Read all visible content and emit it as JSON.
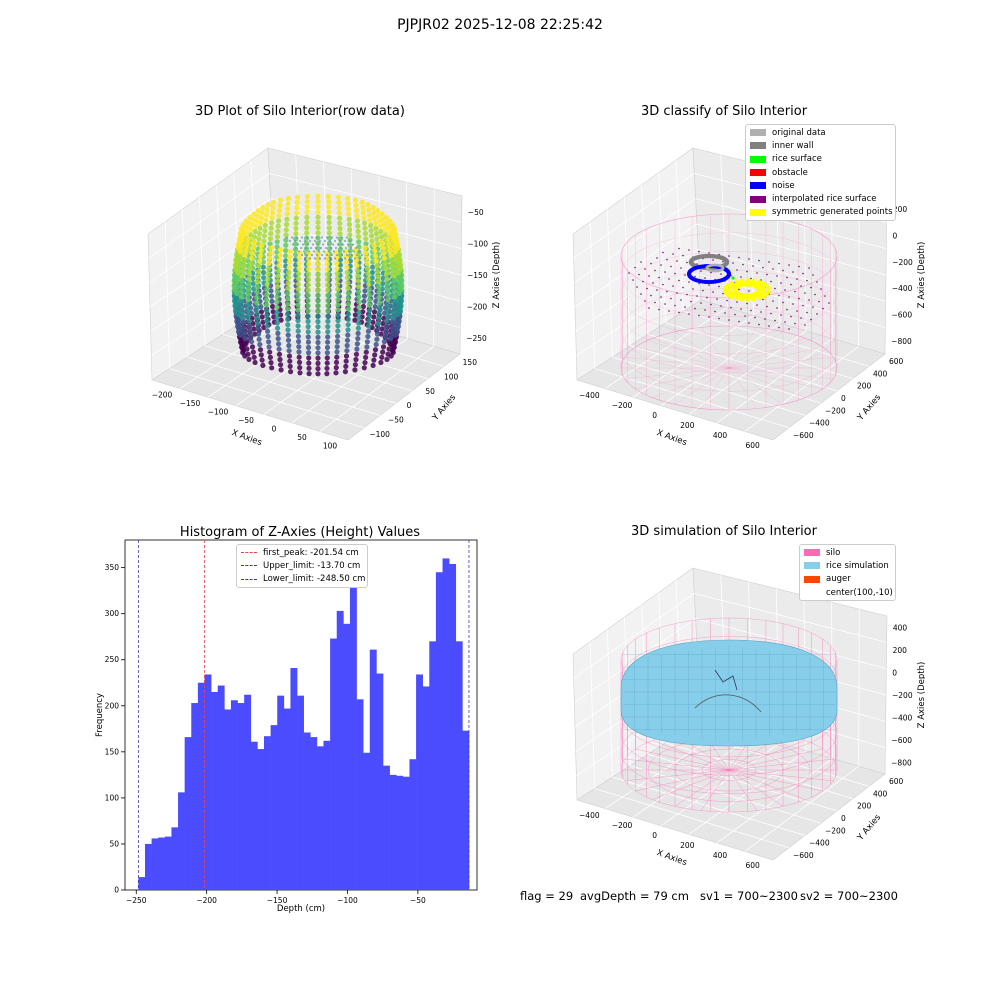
{
  "suptitle": "PJPJR02 2025-12-08 22:25:42",
  "footer": {
    "flag": "flag = 29",
    "avg_depth": "avgDepth = 79 cm",
    "sv1": "sv1 = 700~2300",
    "sv2": "sv2 = 700~2300"
  },
  "colors": {
    "hist_bar": "#4c4cff",
    "peak_line": "#e8434b",
    "limit_line": "#3a3aa8",
    "silo": "#ff69b4",
    "rice_simulation": "#87ceeb",
    "auger": "#ff4500",
    "original_data": "#b0b0b0",
    "inner_wall": "#808080",
    "rice_surface": "#00ff00",
    "obstacle": "#ff0000",
    "noise": "#0000ff",
    "interpolated": "#800080",
    "symmetric": "#ffff00"
  },
  "panel_raw": {
    "title": "3D Plot of Silo Interior(row data)",
    "x_label": "X Axies",
    "y_label": "Y Axies",
    "z_label": "Z Axies (Depth)",
    "x_ticks": [
      "−200",
      "−150",
      "−100",
      "−50",
      "0",
      "50",
      "100"
    ],
    "y_ticks": [
      "−100",
      "−50",
      "0",
      "50",
      "100",
      "150"
    ],
    "z_ticks": [
      "−50",
      "−100",
      "−150",
      "−200",
      "−250"
    ]
  },
  "panel_classify": {
    "title": "3D classify of Silo Interior",
    "x_label": "X Axies",
    "y_label": "Y Axies",
    "z_label": "Z Axies (Depth)",
    "x_ticks": [
      "−400",
      "−200",
      "0",
      "200",
      "400",
      "600"
    ],
    "y_ticks": [
      "−600",
      "−400",
      "−200",
      "0",
      "200",
      "400",
      "600"
    ],
    "z_ticks": [
      "200",
      "0",
      "−200",
      "−400",
      "−600",
      "−800"
    ],
    "legend": [
      {
        "label": "original data",
        "color": "#b0b0b0"
      },
      {
        "label": "inner wall",
        "color": "#808080"
      },
      {
        "label": "rice surface",
        "color": "#00ff00"
      },
      {
        "label": "obstacle",
        "color": "#ff0000"
      },
      {
        "label": "noise",
        "color": "#0000ff"
      },
      {
        "label": "interpolated rice surface",
        "color": "#800080"
      },
      {
        "label": "symmetric generated points",
        "color": "#ffff00"
      }
    ]
  },
  "panel_sim": {
    "title": "3D simulation of Silo Interior",
    "x_label": "X Axies",
    "y_label": "Y Axies",
    "z_label": "Z Axies (Depth)",
    "x_ticks": [
      "−400",
      "−200",
      "0",
      "200",
      "400",
      "600"
    ],
    "y_ticks": [
      "−600",
      "−400",
      "−200",
      "0",
      "200",
      "400",
      "600"
    ],
    "z_ticks": [
      "400",
      "200",
      "0",
      "−200",
      "−400",
      "−600",
      "−800"
    ],
    "legend": [
      {
        "label": "silo",
        "color": "#ff69b4"
      },
      {
        "label": "rice simulation",
        "color": "#87ceeb"
      },
      {
        "label": "auger",
        "color": "#ff4500"
      },
      {
        "label": "center(100,-10)",
        "color": ""
      }
    ]
  },
  "chart_data": {
    "type": "bar",
    "title": "Histogram of Z-Axies (Height) Values",
    "xlabel": "Depth (cm)",
    "ylabel": "Frequency",
    "xlim": [
      -258,
      -8
    ],
    "ylim": [
      0,
      380
    ],
    "x_ticks": [
      -250,
      -200,
      -150,
      -100,
      -50
    ],
    "x_tick_labels": [
      "−250",
      "−200",
      "−150",
      "−100",
      "−50"
    ],
    "y_ticks": [
      0,
      50,
      100,
      150,
      200,
      250,
      300,
      350
    ],
    "bin_start": -248.5,
    "bin_end": -13.7,
    "counts": [
      14,
      50,
      56,
      57,
      58,
      68,
      106,
      166,
      203,
      225,
      234,
      215,
      222,
      196,
      206,
      203,
      212,
      161,
      153,
      167,
      179,
      211,
      197,
      241,
      211,
      171,
      166,
      156,
      162,
      273,
      303,
      289,
      365,
      207,
      149,
      261,
      235,
      135,
      125,
      124,
      123,
      142,
      234,
      221,
      270,
      345,
      360,
      354,
      270,
      173
    ],
    "reference_lines": [
      {
        "label": "first_peak: -201.54 cm",
        "x": -201.54,
        "color": "#e8434b"
      },
      {
        "label": "Upper_limit: -13.70 cm",
        "x": -13.7,
        "color": "#3a3aa8"
      },
      {
        "label": "Lower_limit: -248.50 cm",
        "x": -248.5,
        "color": "#3a3aa8"
      }
    ],
    "legend_position": "upper-center"
  }
}
